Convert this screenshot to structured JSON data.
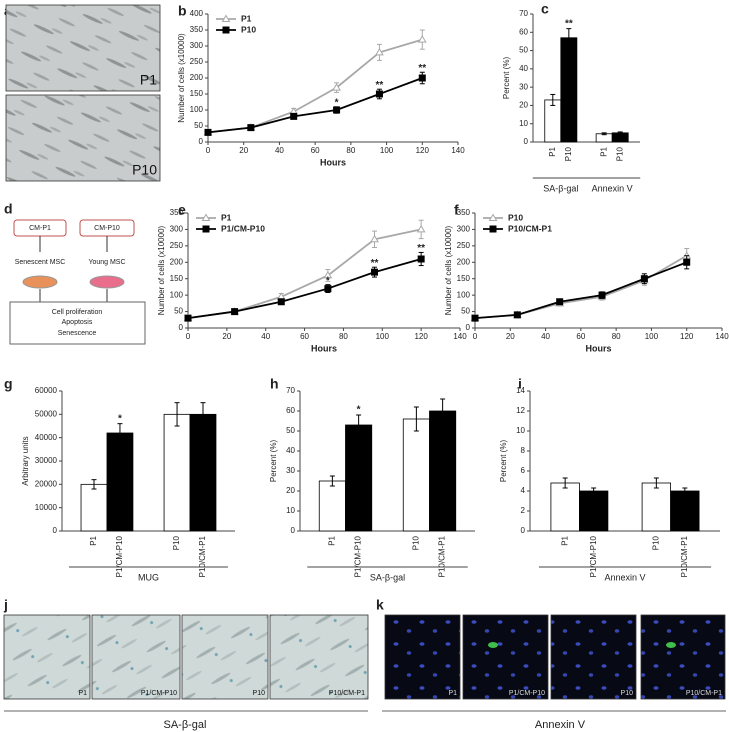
{
  "image_panels": [
    {
      "panel_label": "a",
      "images": [
        "P1",
        "P10"
      ]
    },
    {
      "panel_label": "j",
      "images": [
        "P1",
        "P1/CM-P10",
        "P10",
        "P10/CM-P1"
      ],
      "caption": "SA-β-gal"
    },
    {
      "panel_label": "k",
      "images": [
        "P1",
        "P1/CM-P10",
        "P10",
        "P10/CM-P1"
      ],
      "caption": "Annexin V"
    }
  ],
  "diagram": {
    "panel_label": "d",
    "media": [
      "CM-P1",
      "CM-P10"
    ],
    "cells": [
      "Senescent MSC",
      "Young MSC"
    ],
    "outcomes": [
      "Cell proliferation",
      "Apoptosis",
      "Senescence"
    ]
  },
  "chart_data": [
    {
      "type": "line",
      "panel_label": "b",
      "xlabel": "Hours",
      "ylabel": "Number of cells (x10000)",
      "x": [
        0,
        24,
        48,
        72,
        96,
        120
      ],
      "xlim": [
        0,
        140
      ],
      "xticks": [
        0,
        20,
        40,
        60,
        80,
        100,
        120,
        140
      ],
      "ylim": [
        0,
        400
      ],
      "yticks": [
        0,
        50,
        100,
        150,
        200,
        250,
        300,
        350,
        400
      ],
      "legend": "upper left",
      "series": [
        {
          "name": "P1",
          "color": "#a8a8a8",
          "marker": "triangle",
          "values": [
            30,
            45,
            95,
            170,
            280,
            320
          ],
          "errors": [
            5,
            6,
            10,
            15,
            25,
            30
          ]
        },
        {
          "name": "P10",
          "color": "#000000",
          "marker": "square",
          "values": [
            30,
            45,
            80,
            100,
            150,
            200
          ],
          "errors": [
            5,
            6,
            8,
            10,
            15,
            18
          ]
        }
      ],
      "annotations": [
        {
          "x": 72,
          "text": "*"
        },
        {
          "x": 96,
          "text": "**"
        },
        {
          "x": 120,
          "text": "**"
        }
      ]
    },
    {
      "type": "bar",
      "panel_label": "c",
      "ylabel": "Percent (%)",
      "ylim": [
        0,
        70
      ],
      "yticks": [
        0,
        10,
        20,
        30,
        40,
        50,
        60,
        70
      ],
      "categories": [
        "P1",
        "P10",
        "P1",
        "P10"
      ],
      "groups": [
        "SA-β-gal",
        "Annexin V"
      ],
      "values": [
        23,
        57,
        4.5,
        5
      ],
      "errors": [
        3,
        5,
        0.5,
        0.5
      ],
      "colors": [
        "#ffffff",
        "#000000",
        "#ffffff",
        "#000000"
      ],
      "annotations": [
        {
          "index": 1,
          "text": "**"
        }
      ]
    },
    {
      "type": "line",
      "panel_label": "e",
      "xlabel": "Hours",
      "ylabel": "Number of cells (x10000)",
      "x": [
        0,
        24,
        48,
        72,
        96,
        120
      ],
      "xlim": [
        0,
        140
      ],
      "xticks": [
        0,
        20,
        40,
        60,
        80,
        100,
        120,
        140
      ],
      "ylim": [
        0,
        350
      ],
      "yticks": [
        0,
        50,
        100,
        150,
        200,
        250,
        300,
        350
      ],
      "legend": "upper left",
      "series": [
        {
          "name": "P1",
          "color": "#a8a8a8",
          "marker": "triangle",
          "values": [
            30,
            50,
            95,
            160,
            270,
            300
          ],
          "errors": [
            5,
            6,
            10,
            18,
            25,
            28
          ]
        },
        {
          "name": "P1/CM-P10",
          "color": "#000000",
          "marker": "square",
          "values": [
            30,
            50,
            80,
            120,
            170,
            210
          ],
          "errors": [
            5,
            6,
            8,
            12,
            15,
            20
          ]
        }
      ],
      "annotations": [
        {
          "x": 72,
          "text": "*"
        },
        {
          "x": 96,
          "text": "**"
        },
        {
          "x": 120,
          "text": "**"
        }
      ]
    },
    {
      "type": "line",
      "panel_label": "f",
      "xlabel": "Hours",
      "ylabel": "Number of cells (x10000)",
      "x": [
        0,
        24,
        48,
        72,
        96,
        120
      ],
      "xlim": [
        0,
        140
      ],
      "xticks": [
        0,
        20,
        40,
        60,
        80,
        100,
        120,
        140
      ],
      "ylim": [
        0,
        350
      ],
      "yticks": [
        0,
        50,
        100,
        150,
        200,
        250,
        300,
        350
      ],
      "legend": "upper left",
      "series": [
        {
          "name": "P10",
          "color": "#a8a8a8",
          "marker": "triangle",
          "values": [
            30,
            40,
            75,
            95,
            145,
            220
          ],
          "errors": [
            5,
            6,
            8,
            10,
            15,
            22
          ]
        },
        {
          "name": "P10/CM-P1",
          "color": "#000000",
          "marker": "square",
          "values": [
            30,
            40,
            80,
            100,
            150,
            200
          ],
          "errors": [
            5,
            6,
            8,
            10,
            15,
            20
          ]
        }
      ],
      "annotations": []
    },
    {
      "type": "bar",
      "panel_label": "g",
      "ylabel": "Arbitrary units",
      "ylim": [
        0,
        60000
      ],
      "yticks": [
        0,
        10000,
        20000,
        30000,
        40000,
        50000,
        60000
      ],
      "categories": [
        "P1",
        "P1/CM-P10",
        "P10",
        "P10/CM-P1"
      ],
      "groups": [
        "MUG"
      ],
      "values": [
        20000,
        42000,
        50000,
        50000
      ],
      "errors": [
        2000,
        4000,
        5000,
        5000
      ],
      "colors": [
        "#ffffff",
        "#000000",
        "#ffffff",
        "#000000"
      ],
      "annotations": [
        {
          "index": 1,
          "text": "*"
        }
      ]
    },
    {
      "type": "bar",
      "panel_label": "h",
      "ylabel": "Percent (%)",
      "ylim": [
        0,
        70
      ],
      "yticks": [
        0,
        10,
        20,
        30,
        40,
        50,
        60,
        70
      ],
      "categories": [
        "P1",
        "P1/CM-P10",
        "P10",
        "P10/CM-P1"
      ],
      "groups": [
        "SA-β-gal"
      ],
      "values": [
        25,
        53,
        56,
        60
      ],
      "errors": [
        2.5,
        5,
        6,
        6
      ],
      "colors": [
        "#ffffff",
        "#000000",
        "#ffffff",
        "#000000"
      ],
      "annotations": [
        {
          "index": 1,
          "text": "*"
        }
      ]
    },
    {
      "type": "bar",
      "panel_label": "i",
      "ylabel": "Percent (%)",
      "ylim": [
        0,
        14
      ],
      "yticks": [
        0,
        2,
        4,
        6,
        8,
        10,
        12,
        14
      ],
      "categories": [
        "P1",
        "P1/CM-P10",
        "P10",
        "P10/CM-P1"
      ],
      "groups": [
        "Annexin V"
      ],
      "values": [
        4.8,
        4.0,
        4.8,
        4.0
      ],
      "errors": [
        0.5,
        0.3,
        0.5,
        0.3
      ],
      "colors": [
        "#ffffff",
        "#000000",
        "#ffffff",
        "#000000"
      ],
      "annotations": []
    }
  ]
}
